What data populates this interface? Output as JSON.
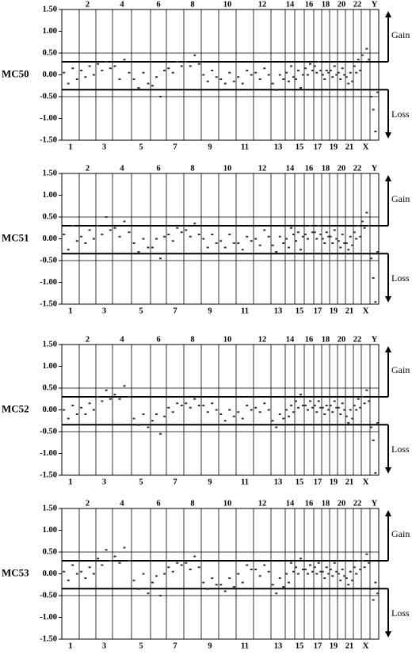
{
  "chart_data": [
    {
      "type": "scatter",
      "label": "MC50",
      "categories": [
        "1",
        "2",
        "3",
        "4",
        "5",
        "6",
        "7",
        "8",
        "9",
        "10",
        "11",
        "12",
        "13",
        "14",
        "15",
        "16",
        "17",
        "18",
        "19",
        "20",
        "21",
        "22",
        "X",
        "Y"
      ],
      "values": [
        [
          0.05,
          -0.2,
          0.15,
          -0.1
        ],
        [
          0.1,
          -0.05,
          0.2,
          0.0
        ],
        [
          0.25,
          0.1,
          0.3,
          0.15
        ],
        [
          0.2,
          -0.1,
          0.35,
          0.05
        ],
        [
          -0.1,
          -0.3,
          0.05,
          -0.2
        ],
        [
          -0.25,
          -0.05,
          -0.5,
          0.1
        ],
        [
          0.15,
          0.05,
          0.3,
          0.2
        ],
        [
          0.3,
          0.2,
          0.45,
          0.25
        ],
        [
          0.0,
          -0.15,
          0.1,
          -0.05
        ],
        [
          -0.1,
          -0.2,
          0.05,
          -0.15
        ],
        [
          -0.05,
          -0.2,
          0.1,
          0.0
        ],
        [
          0.05,
          -0.1,
          0.15,
          0.0
        ],
        [
          -0.2,
          -0.35,
          0.0,
          -0.1
        ],
        [
          0.05,
          -0.15,
          0.2,
          -0.05
        ],
        [
          -0.1,
          0.1,
          -0.3,
          0.0
        ],
        [
          0.15,
          0.0,
          0.25,
          0.1
        ],
        [
          0.2,
          0.05,
          0.3,
          0.1
        ],
        [
          0.0,
          -0.1,
          0.1,
          0.05
        ],
        [
          0.1,
          -0.05,
          0.2,
          0.0
        ],
        [
          0.05,
          -0.1,
          0.15,
          0.0
        ],
        [
          -0.05,
          -0.2,
          0.05,
          -0.15
        ],
        [
          0.2,
          0.05,
          0.35,
          0.1
        ],
        [
          0.45,
          0.3,
          0.6,
          0.35
        ],
        [
          -0.5,
          -0.8,
          -1.3,
          -0.4
        ]
      ],
      "ylim": [
        -1.5,
        1.5
      ],
      "yticks": [
        {
          "value": 1.5,
          "label": "1.50"
        },
        {
          "value": 1,
          "label": "1.00"
        },
        {
          "value": 0.5,
          "label": "0.50"
        },
        {
          "value": 0,
          "label": "0.00"
        },
        {
          "value": -0.5,
          "label": "-0.50"
        },
        {
          "value": -1,
          "label": "-1.00"
        },
        {
          "value": -1.5,
          "label": "-1.50"
        }
      ],
      "hlines": [
        0.5,
        -0.5
      ],
      "thresholds": [
        0.3,
        -0.34
      ],
      "gain": "Gain",
      "loss": "Loss",
      "color": "#333333"
    },
    {
      "type": "scatter",
      "label": "MC51",
      "categories": [
        "1",
        "2",
        "3",
        "4",
        "5",
        "6",
        "7",
        "8",
        "9",
        "10",
        "11",
        "12",
        "13",
        "14",
        "15",
        "16",
        "17",
        "18",
        "19",
        "20",
        "21",
        "22",
        "X",
        "Y"
      ],
      "values": [
        [
          0.1,
          -0.25,
          0.3,
          -0.05
        ],
        [
          0.05,
          -0.1,
          0.2,
          0.0
        ],
        [
          0.3,
          0.1,
          0.5,
          0.2
        ],
        [
          0.25,
          0.05,
          0.4,
          0.15
        ],
        [
          -0.1,
          -0.3,
          0.0,
          -0.2
        ],
        [
          -0.2,
          0.0,
          -0.45,
          0.05
        ],
        [
          0.1,
          -0.05,
          0.25,
          0.15
        ],
        [
          0.2,
          0.05,
          0.35,
          0.1
        ],
        [
          0.0,
          -0.2,
          0.1,
          -0.1
        ],
        [
          -0.05,
          -0.2,
          0.1,
          -0.1
        ],
        [
          -0.1,
          -0.25,
          0.05,
          -0.05
        ],
        [
          0.0,
          -0.15,
          0.2,
          0.05
        ],
        [
          -0.15,
          -0.3,
          0.05,
          -0.1
        ],
        [
          0.0,
          -0.2,
          0.25,
          0.1
        ],
        [
          -0.05,
          0.15,
          -0.25,
          0.05
        ],
        [
          0.1,
          0.0,
          0.3,
          0.15
        ],
        [
          0.15,
          0.0,
          0.3,
          0.1
        ],
        [
          0.0,
          -0.1,
          0.15,
          0.05
        ],
        [
          0.05,
          -0.1,
          0.2,
          0.0
        ],
        [
          -0.05,
          -0.2,
          0.1,
          -0.1
        ],
        [
          -0.1,
          -0.25,
          0.05,
          -0.15
        ],
        [
          0.15,
          0.0,
          0.3,
          0.05
        ],
        [
          0.4,
          0.25,
          0.6,
          0.3
        ],
        [
          -0.45,
          -0.9,
          -1.45,
          -0.3
        ]
      ],
      "ylim": [
        -1.5,
        1.5
      ],
      "yticks": [
        {
          "value": 1.5,
          "label": "1.50"
        },
        {
          "value": 1,
          "label": "1.00"
        },
        {
          "value": 0.5,
          "label": "0.50"
        },
        {
          "value": 0,
          "label": "0.00"
        },
        {
          "value": -0.5,
          "label": "-0.50"
        },
        {
          "value": -1,
          "label": "-1.00"
        },
        {
          "value": -1.5,
          "label": "-1.50"
        }
      ],
      "hlines": [
        0.5,
        -0.5
      ],
      "thresholds": [
        0.3,
        -0.34
      ],
      "gain": "Gain",
      "loss": "Loss",
      "color": "#333333"
    },
    {
      "type": "scatter",
      "label": "MC52",
      "categories": [
        "1",
        "2",
        "3",
        "4",
        "5",
        "6",
        "7",
        "8",
        "9",
        "10",
        "11",
        "12",
        "13",
        "14",
        "15",
        "16",
        "17",
        "18",
        "19",
        "20",
        "21",
        "22",
        "X",
        "Y"
      ],
      "values": [
        [
          0.0,
          -0.2,
          0.1,
          -0.1
        ],
        [
          0.05,
          -0.1,
          0.15,
          0.0
        ],
        [
          0.3,
          0.2,
          0.45,
          0.25
        ],
        [
          0.35,
          0.25,
          0.55,
          0.3
        ],
        [
          -0.2,
          -0.35,
          -0.1,
          -0.4
        ],
        [
          -0.25,
          -0.1,
          -0.55,
          -0.15
        ],
        [
          0.05,
          -0.05,
          0.15,
          0.1
        ],
        [
          0.15,
          0.05,
          0.25,
          0.1
        ],
        [
          0.1,
          -0.05,
          0.15,
          0.0
        ],
        [
          -0.1,
          -0.25,
          0.0,
          -0.15
        ],
        [
          -0.05,
          -0.2,
          0.1,
          0.0
        ],
        [
          0.05,
          -0.05,
          0.15,
          0.0
        ],
        [
          -0.25,
          -0.4,
          -0.1,
          -0.2
        ],
        [
          0.0,
          -0.15,
          0.1,
          -0.05
        ],
        [
          0.2,
          0.05,
          0.35,
          0.1
        ],
        [
          0.1,
          0.0,
          0.2,
          0.05
        ],
        [
          0.1,
          -0.05,
          0.2,
          0.05
        ],
        [
          0.05,
          -0.1,
          0.1,
          0.0
        ],
        [
          0.1,
          -0.05,
          0.2,
          0.05
        ],
        [
          0.05,
          -0.1,
          0.15,
          0.0
        ],
        [
          -0.15,
          -0.3,
          0.0,
          -0.2
        ],
        [
          0.1,
          0.0,
          0.25,
          0.05
        ],
        [
          0.3,
          0.15,
          0.45,
          0.2
        ],
        [
          -0.4,
          -0.7,
          -1.45,
          -0.3
        ]
      ],
      "ylim": [
        -1.5,
        1.5
      ],
      "yticks": [
        {
          "value": 1.5,
          "label": "1.50"
        },
        {
          "value": 1,
          "label": "1.00"
        },
        {
          "value": 0.5,
          "label": "0.50"
        },
        {
          "value": 0,
          "label": "0.00"
        },
        {
          "value": -0.5,
          "label": "-0.50"
        },
        {
          "value": -1,
          "label": "-1.00"
        },
        {
          "value": -1.5,
          "label": "-1.50"
        }
      ],
      "hlines": [
        0.5,
        -0.5
      ],
      "thresholds": [
        0.3,
        -0.34
      ],
      "gain": "Gain",
      "loss": "Loss",
      "color": "#333333"
    },
    {
      "type": "scatter",
      "label": "MC53",
      "categories": [
        "1",
        "2",
        "3",
        "4",
        "5",
        "6",
        "7",
        "8",
        "9",
        "10",
        "11",
        "12",
        "13",
        "14",
        "15",
        "16",
        "17",
        "18",
        "19",
        "20",
        "21",
        "22",
        "X",
        "Y"
      ],
      "values": [
        [
          0.05,
          -0.15,
          0.2,
          0.0
        ],
        [
          0.05,
          -0.1,
          0.15,
          0.0
        ],
        [
          0.35,
          0.2,
          0.55,
          0.3
        ],
        [
          0.4,
          0.25,
          0.6,
          0.3
        ],
        [
          -0.15,
          -0.35,
          0.0,
          -0.45
        ],
        [
          -0.2,
          -0.05,
          -0.5,
          0.0
        ],
        [
          0.15,
          0.05,
          0.25,
          0.2
        ],
        [
          0.25,
          0.1,
          0.4,
          0.15
        ],
        [
          -0.2,
          -0.35,
          -0.1,
          -0.25
        ],
        [
          -0.25,
          -0.4,
          -0.1,
          -0.3
        ],
        [
          0.0,
          -0.2,
          0.2,
          0.1
        ],
        [
          0.1,
          -0.05,
          0.2,
          0.05
        ],
        [
          -0.25,
          -0.45,
          -0.1,
          -0.3
        ],
        [
          0.0,
          -0.2,
          0.25,
          0.05
        ],
        [
          0.15,
          0.0,
          0.35,
          0.1
        ],
        [
          0.1,
          0.0,
          0.2,
          0.05
        ],
        [
          0.15,
          0.0,
          0.25,
          0.05
        ],
        [
          0.05,
          -0.1,
          0.15,
          0.0
        ],
        [
          0.1,
          -0.05,
          0.25,
          0.05
        ],
        [
          0.0,
          -0.15,
          0.1,
          -0.05
        ],
        [
          -0.1,
          -0.25,
          0.05,
          -0.15
        ],
        [
          0.15,
          0.0,
          0.3,
          0.1
        ],
        [
          0.3,
          0.15,
          0.45,
          0.25
        ],
        [
          -0.35,
          -0.6,
          -0.2,
          -0.45
        ]
      ],
      "ylim": [
        -1.5,
        1.5
      ],
      "yticks": [
        {
          "value": 1.5,
          "label": "1.50"
        },
        {
          "value": 1,
          "label": "1.00"
        },
        {
          "value": 0.5,
          "label": "0.50"
        },
        {
          "value": 0,
          "label": "0.00"
        },
        {
          "value": -0.5,
          "label": "-0.50"
        },
        {
          "value": -1,
          "label": "-1.00"
        },
        {
          "value": -1.5,
          "label": "-1.50"
        }
      ],
      "hlines": [
        0.5,
        -0.5
      ],
      "thresholds": [
        0.3,
        -0.34
      ],
      "gain": "Gain",
      "loss": "Loss",
      "color": "#333333"
    }
  ]
}
